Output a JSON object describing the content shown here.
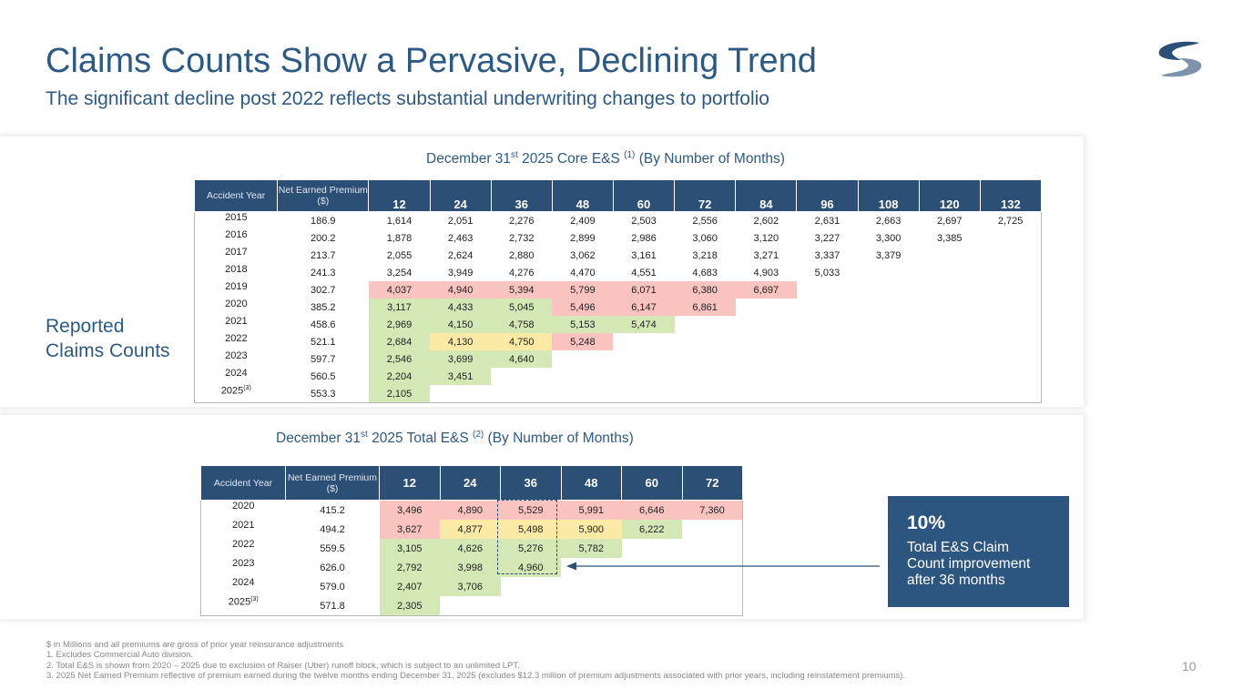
{
  "header": {
    "title": "Claims Counts Show a Pervasive, Declining Trend",
    "subtitle": "The significant decline post 2022 reflects substantial underwriting changes to portfolio"
  },
  "side_label": [
    "Reported",
    "Claims Counts"
  ],
  "table1": {
    "caption": {
      "pre": "December 31",
      "sup1": "st",
      "mid": " 2025 Core E&S ",
      "sup2": "(1)",
      "post": " (By Number of Months)"
    },
    "headers": [
      "Accident Year",
      "Net Earned Premium ($)",
      "12",
      "24",
      "36",
      "48",
      "60",
      "72",
      "84",
      "96",
      "108",
      "120",
      "132"
    ],
    "rows": [
      {
        "year": "2015",
        "prem": "186.9",
        "vals": [
          "1,614",
          "2,051",
          "2,276",
          "2,409",
          "2,503",
          "2,556",
          "2,602",
          "2,631",
          "2,663",
          "2,697",
          "2,725"
        ],
        "colors": []
      },
      {
        "year": "2016",
        "prem": "200.2",
        "vals": [
          "1,878",
          "2,463",
          "2,732",
          "2,899",
          "2,986",
          "3,060",
          "3,120",
          "3,227",
          "3,300",
          "3,385"
        ],
        "colors": []
      },
      {
        "year": "2017",
        "prem": "213.7",
        "vals": [
          "2,055",
          "2,624",
          "2,880",
          "3,062",
          "3,161",
          "3,218",
          "3,271",
          "3,337",
          "3,379"
        ],
        "colors": []
      },
      {
        "year": "2018",
        "prem": "241.3",
        "vals": [
          "3,254",
          "3,949",
          "4,276",
          "4,470",
          "4,551",
          "4,683",
          "4,903",
          "5,033"
        ],
        "colors": []
      },
      {
        "year": "2019",
        "prem": "302.7",
        "vals": [
          "4,037",
          "4,940",
          "5,394",
          "5,799",
          "6,071",
          "6,380",
          "6,697"
        ],
        "colors": [
          "r",
          "r",
          "r",
          "r",
          "r",
          "r",
          "r"
        ]
      },
      {
        "year": "2020",
        "prem": "385.2",
        "vals": [
          "3,117",
          "4,433",
          "5,045",
          "5,496",
          "6,147",
          "6,861"
        ],
        "colors": [
          "g",
          "g",
          "g",
          "r",
          "r",
          "r"
        ]
      },
      {
        "year": "2021",
        "prem": "458.6",
        "vals": [
          "2,969",
          "4,150",
          "4,758",
          "5,153",
          "5,474"
        ],
        "colors": [
          "g",
          "g",
          "g",
          "g",
          "g"
        ]
      },
      {
        "year": "2022",
        "prem": "521.1",
        "vals": [
          "2,684",
          "4,130",
          "4,750",
          "5,248"
        ],
        "colors": [
          "g",
          "y",
          "y",
          "r"
        ]
      },
      {
        "year": "2023",
        "prem": "597.7",
        "vals": [
          "2,546",
          "3,699",
          "4,640"
        ],
        "colors": [
          "g",
          "g",
          "g"
        ]
      },
      {
        "year": "2024",
        "prem": "560.5",
        "vals": [
          "2,204",
          "3,451"
        ],
        "colors": [
          "g",
          "g"
        ]
      },
      {
        "year": "2025",
        "year_sup": "(3)",
        "prem": "553.3",
        "vals": [
          "2,105"
        ],
        "colors": [
          "g"
        ]
      }
    ]
  },
  "table2": {
    "caption": {
      "pre": "December 31",
      "sup1": "st",
      "mid": " 2025 Total E&S ",
      "sup2": "(2)",
      "post": " (By Number of Months)"
    },
    "headers": [
      "Accident Year",
      "Net Earned Premium ($)",
      "12",
      "24",
      "36",
      "48",
      "60",
      "72"
    ],
    "rows": [
      {
        "year": "2020",
        "prem": "415.2",
        "vals": [
          "3,496",
          "4,890",
          "5,529",
          "5,991",
          "6,646",
          "7,360"
        ],
        "colors": [
          "r",
          "r",
          "r",
          "r",
          "r",
          "r"
        ]
      },
      {
        "year": "2021",
        "prem": "494.2",
        "vals": [
          "3,627",
          "4,877",
          "5,498",
          "5,900",
          "6,222"
        ],
        "colors": [
          "r",
          "y",
          "y",
          "y",
          "g"
        ]
      },
      {
        "year": "2022",
        "prem": "559.5",
        "vals": [
          "3,105",
          "4,626",
          "5,276",
          "5,782"
        ],
        "colors": [
          "g",
          "g",
          "g",
          "g"
        ]
      },
      {
        "year": "2023",
        "prem": "626.0",
        "vals": [
          "2,792",
          "3,998",
          "4,960"
        ],
        "colors": [
          "g",
          "g",
          "g"
        ]
      },
      {
        "year": "2024",
        "prem": "579.0",
        "vals": [
          "2,407",
          "3,706"
        ],
        "colors": [
          "g",
          "g"
        ]
      },
      {
        "year": "2025",
        "year_sup": "(3)",
        "prem": "571.8",
        "vals": [
          "2,305"
        ],
        "colors": [
          "g"
        ]
      }
    ]
  },
  "callout": {
    "pct": "10%",
    "text": [
      "Total E&S Claim",
      "Count improvement",
      "after 36 months"
    ]
  },
  "colors": {
    "red": "#f9c3c0",
    "green": "#d3e8b4",
    "yellow": "#fbeaa5",
    "header": "#2c4f76",
    "title": "#2c5a85"
  },
  "footnotes": [
    "$ in Millions and all premiums are gross of prior year reinsurance adjustments",
    "1.  Excludes Commercial Auto division.",
    "2.  Total E&S is shown from  2020 – 2025 due to exclusion of Raiser (Uber) runoff block, which is subject to an unlimited LPT.",
    "3.  2025 Net Earned Premium reflective of premium earned during the twelve months ending December 31, 2025 (excludes $12.3 million of premium adjustments associated with prior years, including reinstatement premiums)."
  ],
  "page_number": "10"
}
